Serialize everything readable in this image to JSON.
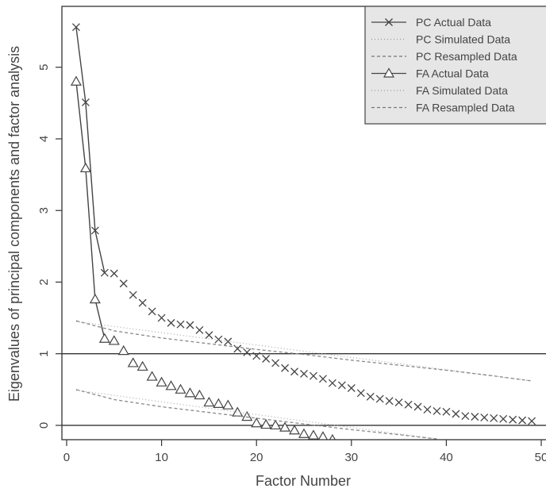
{
  "chart_data": {
    "type": "line",
    "title": "",
    "xlabel": "Factor Number",
    "ylabel": "Eigenvalues of principal components and factor analysis",
    "xlim": [
      -0.5,
      50.5
    ],
    "ylim": [
      -0.2,
      5.85
    ],
    "xticks": [
      0,
      10,
      20,
      30,
      40,
      50
    ],
    "yticks": [
      0,
      1,
      2,
      3,
      4,
      5
    ],
    "grid": false,
    "reference_lines_y": [
      1,
      0
    ],
    "legend_position": "top-right",
    "series": [
      {
        "name": "PC  Actual Data",
        "marker": "x",
        "line": "solid-first-points",
        "x": [
          1,
          2,
          3,
          4,
          5,
          6,
          7,
          8,
          9,
          10,
          11,
          12,
          13,
          14,
          15,
          16,
          17,
          18,
          19,
          20,
          21,
          22,
          23,
          24,
          25,
          26,
          27,
          28,
          29,
          30,
          31,
          32,
          33,
          34,
          35,
          36,
          37,
          38,
          39,
          40,
          41,
          42,
          43,
          44,
          45,
          46,
          47,
          48,
          49
        ],
        "y": [
          5.56,
          4.51,
          2.72,
          2.13,
          2.12,
          1.98,
          1.82,
          1.71,
          1.59,
          1.5,
          1.43,
          1.41,
          1.4,
          1.33,
          1.26,
          1.2,
          1.17,
          1.07,
          1.02,
          0.97,
          0.93,
          0.87,
          0.8,
          0.75,
          0.72,
          0.69,
          0.65,
          0.59,
          0.56,
          0.52,
          0.45,
          0.4,
          0.37,
          0.34,
          0.32,
          0.29,
          0.26,
          0.22,
          0.2,
          0.19,
          0.16,
          0.13,
          0.12,
          0.11,
          0.1,
          0.09,
          0.08,
          0.07,
          0.06
        ]
      },
      {
        "name": "PC  Simulated Data",
        "line": "dotted",
        "x": [
          1,
          49
        ],
        "y": [
          1.45,
          0.62
        ]
      },
      {
        "name": "PC  Resampled Data",
        "line": "dashed",
        "x": [
          1,
          5,
          10,
          15,
          20,
          25,
          30,
          35,
          40,
          45,
          49
        ],
        "y": [
          1.46,
          1.32,
          1.22,
          1.14,
          1.06,
          0.99,
          0.91,
          0.84,
          0.77,
          0.69,
          0.62
        ]
      },
      {
        "name": "FA  Actual Data",
        "marker": "triangle",
        "line": "solid-first-points",
        "x": [
          1,
          2,
          3,
          4,
          5,
          6,
          7,
          8,
          9,
          10,
          11,
          12,
          13,
          14,
          15,
          16,
          17,
          18,
          19,
          20,
          21,
          22,
          23,
          24,
          25,
          26,
          27,
          28
        ],
        "y": [
          4.8,
          3.59,
          1.76,
          1.21,
          1.18,
          1.04,
          0.87,
          0.82,
          0.68,
          0.6,
          0.55,
          0.5,
          0.45,
          0.42,
          0.32,
          0.3,
          0.28,
          0.18,
          0.12,
          0.03,
          0.01,
          0.0,
          -0.03,
          -0.07,
          -0.12,
          -0.14,
          -0.16,
          -0.2
        ]
      },
      {
        "name": "FA  Simulated Data",
        "line": "dotted",
        "x": [
          1,
          39
        ],
        "y": [
          0.49,
          -0.19
        ]
      },
      {
        "name": "FA  Resampled Data",
        "line": "dashed",
        "x": [
          1,
          5,
          10,
          15,
          20,
          25,
          30,
          35,
          39
        ],
        "y": [
          0.5,
          0.36,
          0.26,
          0.18,
          0.1,
          0.02,
          -0.06,
          -0.13,
          -0.19
        ]
      }
    ]
  }
}
